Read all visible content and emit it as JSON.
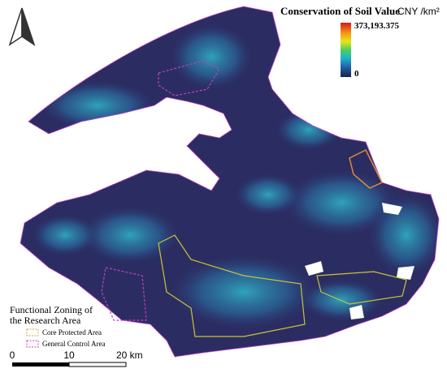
{
  "legend": {
    "title": "Conservation of Soil Value",
    "unit": "CNY /km²",
    "max_label": "373,193.375",
    "min_label": "0"
  },
  "zoning": {
    "title_lines": [
      "Functional Zoning of",
      "the Research Area"
    ],
    "items": [
      "Core Protected Area",
      "General Control Area"
    ]
  },
  "scale_bar": {
    "labels": [
      "0",
      "10",
      "20 km"
    ]
  }
}
